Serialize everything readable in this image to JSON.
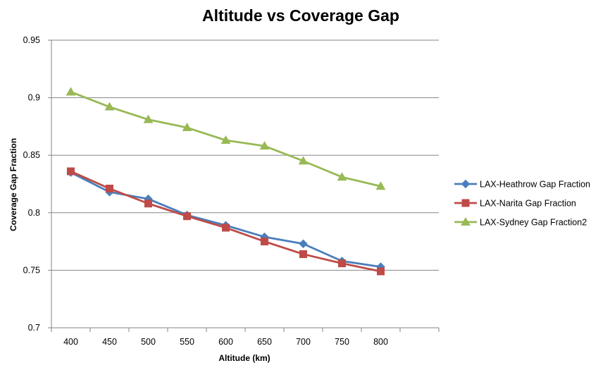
{
  "chart_data": {
    "type": "line",
    "title": "Altitude vs Coverage Gap",
    "xlabel": "Altitude (km)",
    "ylabel": "Coverage  Gap Fraction",
    "categories": [
      "400",
      "450",
      "500",
      "550",
      "600",
      "650",
      "700",
      "750",
      "800"
    ],
    "y_ticks": [
      "0.7",
      "0.75",
      "0.8",
      "0.85",
      "0.9",
      "0.95"
    ],
    "ylim": [
      0.7,
      0.95
    ],
    "grid": "horizontal",
    "legend_position": "right",
    "series": [
      {
        "name": "LAX-Heathrow Gap Fraction",
        "color": "#4A7EBB",
        "marker": "diamond",
        "values": [
          0.835,
          0.818,
          0.812,
          0.798,
          0.789,
          0.779,
          0.773,
          0.758,
          0.753
        ]
      },
      {
        "name": "LAX-Narita Gap Fraction",
        "color": "#BE4B48",
        "marker": "square",
        "values": [
          0.836,
          0.821,
          0.808,
          0.797,
          0.787,
          0.775,
          0.764,
          0.756,
          0.749
        ]
      },
      {
        "name": "LAX-Sydney Gap Fraction2",
        "color": "#98B954",
        "marker": "triangle",
        "values": [
          0.905,
          0.892,
          0.881,
          0.874,
          0.863,
          0.858,
          0.845,
          0.831,
          0.823
        ]
      }
    ]
  }
}
